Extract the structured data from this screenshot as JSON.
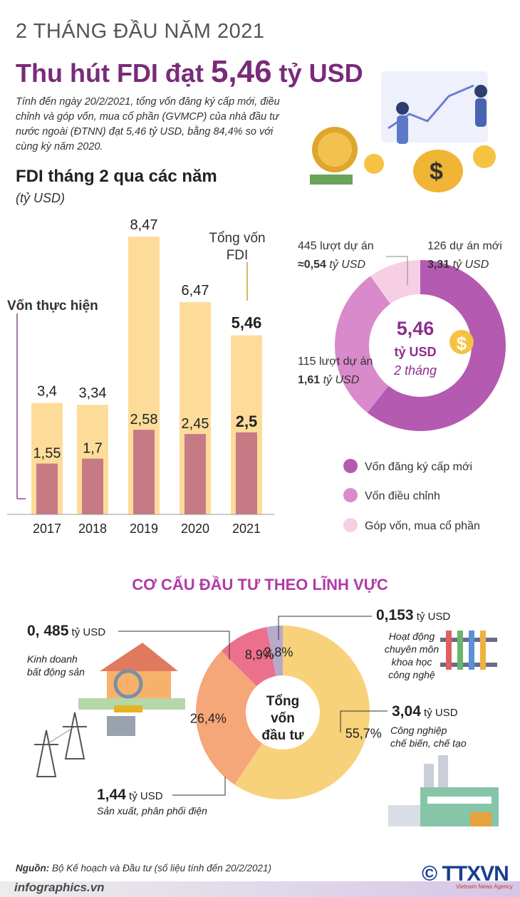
{
  "header": {
    "kicker": "2 THÁNG ĐẦU NĂM 2021",
    "title_prefix": "Thu hút FDI đạt ",
    "title_value": "5,46",
    "title_suffix": " tỷ USD",
    "lead": "Tính đến ngày 20/2/2021, tổng vốn đăng ký cấp mới, điều chỉnh và góp vốn, mua cổ phần (GVMCP) của nhà đầu tư nước ngoài (ĐTNN) đạt 5,46 tỷ USD, bằng 84,4% so với cùng kỳ năm 2020."
  },
  "bar_section": {
    "title": "FDI tháng 2 qua các năm",
    "unit": "(tỷ USD)",
    "label_realized": "Vốn thực hiện",
    "label_total": "Tổng vốn\nFDI"
  },
  "donut_section": {
    "center_value": "5,46",
    "center_unit": "tỷ USD",
    "center_period": "2 tháng",
    "callouts": [
      {
        "line1": "445 lượt dự án",
        "line2_prefix": "≈",
        "line2_value": "0,54",
        "line2_unit": " tỷ USD"
      },
      {
        "line1": "126 dự án mới",
        "line2_prefix": "",
        "line2_value": "3,31",
        "line2_unit": " tỷ USD"
      },
      {
        "line1": "115 lượt dự án",
        "line2_prefix": "",
        "line2_value": "1,61",
        "line2_unit": " tỷ USD"
      }
    ],
    "legend": [
      {
        "label": "Vốn đăng ký cấp mới",
        "color": "#b45ab0"
      },
      {
        "label": "Vốn điều chỉnh",
        "color": "#d98acb"
      },
      {
        "label": "Góp vốn, mua cổ phần",
        "color": "#f6cfe5"
      }
    ]
  },
  "sector_section": {
    "title": "CƠ CẤU ĐẦU TƯ THEO LĨNH VỰC",
    "center": "Tổng\nvốn\nđầu tư",
    "callouts": [
      {
        "value": "0, 485",
        "unit": " tỷ USD",
        "desc": "Kinh doanh\nbất động sản"
      },
      {
        "value": "0,153",
        "unit": " tỷ USD",
        "desc": "Hoạt động\nchuyên môn\nkhoa học\ncông nghệ"
      },
      {
        "value": "3,04",
        "unit": " tỷ USD",
        "desc": "Công nghiệp\nchế biến, chế tạo"
      },
      {
        "value": "1,44",
        "unit": " tỷ USD",
        "desc": "Sản xuất, phân phối điện"
      }
    ]
  },
  "footer": {
    "source_label": "Nguồn:",
    "source_text": " Bộ Kế hoạch và Đầu tư (số liệu tính đến 20/2/2021)",
    "site": "infographics.vn",
    "logo": "© TTXVN",
    "logo_sub": "Vietnam News Agency"
  },
  "chart_data": [
    {
      "type": "bar",
      "categories": [
        "2017",
        "2018",
        "2019",
        "2020",
        "2021"
      ],
      "series": [
        {
          "name": "Tổng vốn FDI",
          "values": [
            3.4,
            3.34,
            8.47,
            6.47,
            5.46
          ],
          "labels": [
            "3,4",
            "3,34",
            "8,47",
            "6,47",
            "5,46"
          ],
          "color": "#fddc9a"
        },
        {
          "name": "Vốn thực hiện",
          "values": [
            1.55,
            1.7,
            2.58,
            2.45,
            2.5
          ],
          "labels": [
            "1,55",
            "1,7",
            "2,58",
            "2,45",
            "2,5"
          ],
          "color": "#c57a84"
        }
      ],
      "ylim": [
        0,
        8.47
      ]
    },
    {
      "type": "pie",
      "categories": [
        "Vốn đăng ký cấp mới",
        "Vốn điều chỉnh",
        "Góp vốn, mua cổ phần"
      ],
      "values": [
        3.31,
        1.61,
        0.54
      ],
      "colors": [
        "#b45ab0",
        "#d98acb",
        "#f6cfe5"
      ]
    },
    {
      "type": "pie",
      "categories": [
        "Công nghiệp chế biến, chế tạo",
        "Sản xuất, phân phối điện",
        "Kinh doanh bất động sản",
        "Hoạt động chuyên môn khoa học công nghệ"
      ],
      "values": [
        55.7,
        26.4,
        8.9,
        2.8
      ],
      "labels": [
        "55,7%",
        "26,4%",
        "8,9%",
        "2,8%"
      ],
      "colors": [
        "#f7d27a",
        "#f5a77a",
        "#ec6f8c",
        "#b7a9c9"
      ]
    }
  ]
}
